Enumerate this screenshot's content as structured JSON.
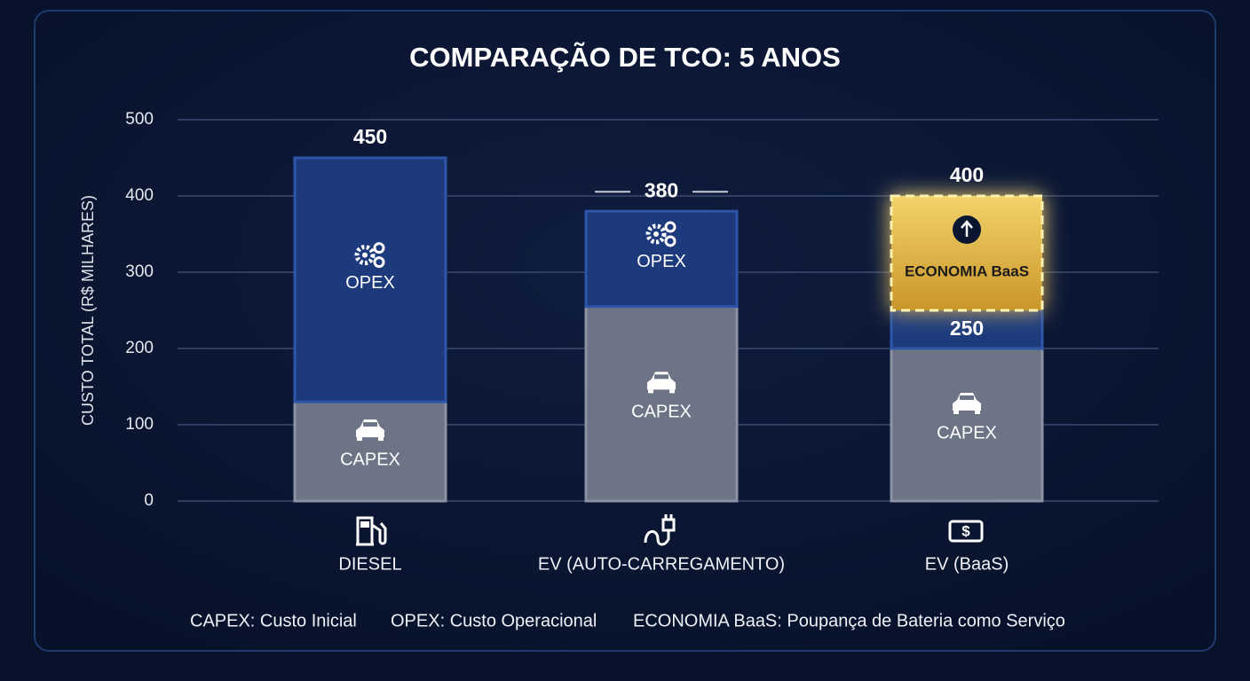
{
  "chart_data": {
    "type": "stacked-bar",
    "title": "COMPARAÇÃO DE TCO: 5 ANOS",
    "y_label": "CUSTO TOTAL (R$ MILHARES)",
    "categories": [
      "DIESEL",
      "EV (AUTO-CARREGAMENTO)",
      "EV (BaaS)"
    ],
    "series": [
      {
        "name": "CAPEX",
        "color": "#6c7486",
        "values": [
          130,
          255,
          200
        ]
      },
      {
        "name": "OPEX",
        "color": "#1d3b7c",
        "values": [
          320,
          125,
          50
        ]
      },
      {
        "name": "ECONOMIA BaaS",
        "color": "#e2b53a",
        "values": [
          null,
          null,
          150
        ]
      }
    ],
    "totals": [
      450,
      380,
      400
    ],
    "baas_subtotal": 250,
    "ylim": [
      0,
      500
    ],
    "yticks": [
      0,
      100,
      200,
      300,
      400,
      500
    ],
    "grid": true,
    "footnotes": [
      "CAPEX: Custo Inicial",
      "OPEX: Custo Operacional",
      "ECONOMIA BaaS: Poupança de Bateria como Serviço"
    ]
  }
}
